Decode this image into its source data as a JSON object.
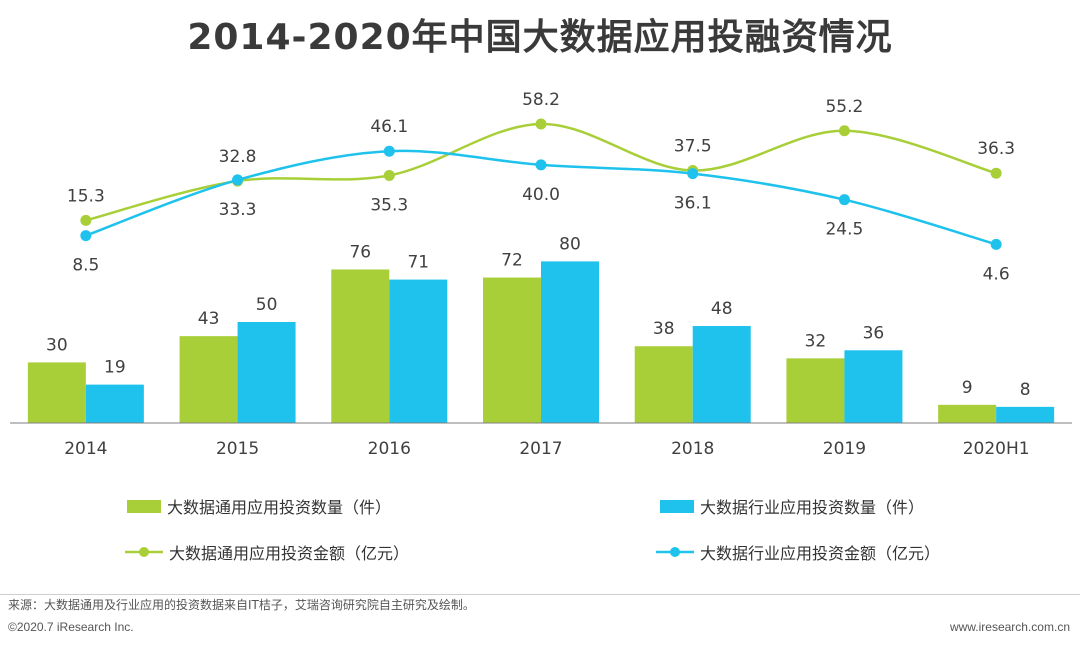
{
  "title": "2014-2020年中国大数据应用投融资情况",
  "colors": {
    "green": "#a8cf38",
    "blue": "#1ec2ec",
    "axis": "#7f7f7f"
  },
  "chart_data": {
    "type": "bar",
    "categories": [
      "2014",
      "2015",
      "2016",
      "2017",
      "2018",
      "2019",
      "2020H1"
    ],
    "bar_series": [
      {
        "name": "大数据通用应用投资数量（件）",
        "values": [
          30,
          43,
          76,
          72,
          38,
          32,
          9
        ],
        "color": "#a8cf38"
      },
      {
        "name": "大数据行业应用投资数量（件）",
        "values": [
          19,
          50,
          71,
          80,
          48,
          36,
          8
        ],
        "color": "#1ec2ec"
      }
    ],
    "line_series": [
      {
        "name": "大数据通用应用投资金额（亿元）",
        "values": [
          15.3,
          32.8,
          35.3,
          58.2,
          37.5,
          55.2,
          36.3
        ],
        "labels": [
          "15.3",
          "32.8",
          "35.3",
          "58.2",
          "37.5",
          "55.2",
          "36.3"
        ],
        "color": "#a8cf38"
      },
      {
        "name": "大数据行业应用投资金额（亿元）",
        "values": [
          8.5,
          33.3,
          46.1,
          40.0,
          36.1,
          24.5,
          4.6
        ],
        "labels": [
          "8.5",
          "33.3",
          "46.1",
          "40.0",
          "36.1",
          "24.5",
          "4.6"
        ],
        "color": "#1ec2ec"
      }
    ],
    "line_label_positions": [
      [
        "above",
        "above",
        "below",
        "above",
        "above",
        "above",
        "above"
      ],
      [
        "below",
        "below",
        "above",
        "below",
        "below",
        "below",
        "below"
      ]
    ],
    "bar_ylim": [
      0,
      150
    ],
    "line_ylim": [
      -75,
      60
    ],
    "legend_position": "bottom"
  },
  "footer": {
    "source": "来源：大数据通用及行业应用的投资数据来自IT桔子，艾瑞咨询研究院自主研究及绘制。",
    "copyright": "©2020.7 iResearch Inc.",
    "website": "www.iresearch.com.cn"
  }
}
